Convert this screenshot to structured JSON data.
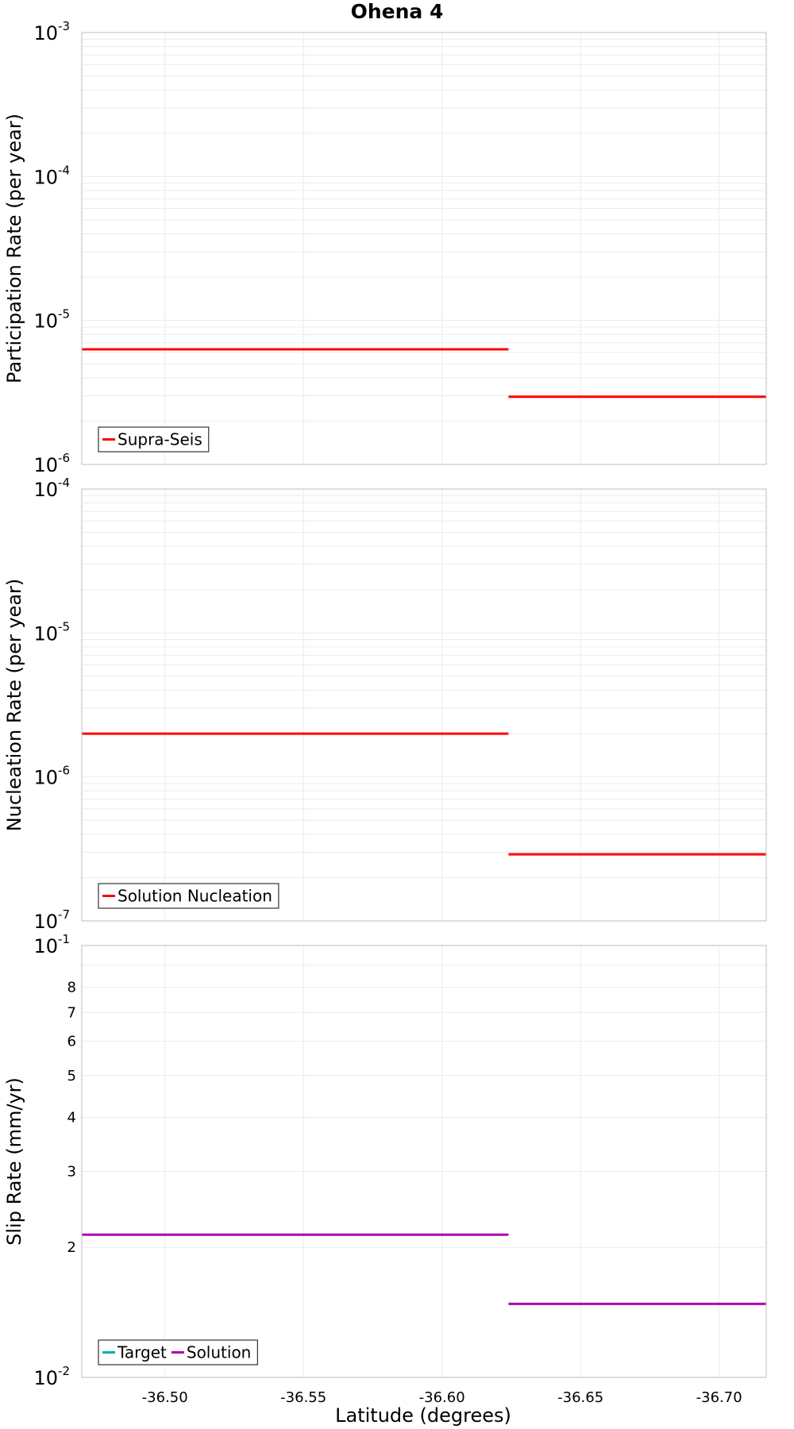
{
  "chart_data": {
    "title": "Ohena 4",
    "xlabel": "Latitude (degrees)",
    "x_ticks": [
      "-36.50",
      "-36.55",
      "-36.60",
      "-36.65",
      "-36.70"
    ],
    "x_tick_values": [
      -36.5,
      -36.55,
      -36.6,
      -36.65,
      -36.7
    ],
    "xlim": [
      -36.47,
      -36.717
    ],
    "x_inverted": true,
    "grid": true,
    "panels": [
      {
        "type": "line",
        "ylabel": "Participation Rate (per year)",
        "yscale": "log",
        "ylim": [
          1e-06,
          0.001
        ],
        "y_decades": [
          {
            "base": "10",
            "exp": "-6"
          },
          {
            "base": "10",
            "exp": "-5"
          },
          {
            "base": "10",
            "exp": "-4"
          },
          {
            "base": "10",
            "exp": "-3"
          }
        ],
        "legend_position": "bottom-left",
        "series": [
          {
            "name": "Supra-Seis",
            "color": "#ff0000",
            "segments": [
              {
                "x": [
                  -36.47,
                  -36.624
                ],
                "y": 6.3e-06
              },
              {
                "x": [
                  -36.624,
                  -36.717
                ],
                "y": 2.95e-06
              }
            ]
          }
        ]
      },
      {
        "type": "line",
        "ylabel": "Nucleation Rate (per year)",
        "yscale": "log",
        "ylim": [
          1e-07,
          0.0001
        ],
        "y_decades": [
          {
            "base": "10",
            "exp": "-7"
          },
          {
            "base": "10",
            "exp": "-6"
          },
          {
            "base": "10",
            "exp": "-5"
          },
          {
            "base": "10",
            "exp": "-4"
          }
        ],
        "legend_position": "bottom-left",
        "series": [
          {
            "name": "Solution Nucleation",
            "color": "#ff0000",
            "segments": [
              {
                "x": [
                  -36.47,
                  -36.624
                ],
                "y": 2e-06
              },
              {
                "x": [
                  -36.624,
                  -36.717
                ],
                "y": 2.9e-07
              }
            ]
          }
        ]
      },
      {
        "type": "line",
        "ylabel": "Slip Rate (mm/yr)",
        "yscale": "log",
        "ylim": [
          0.01,
          0.1
        ],
        "y_decades": [
          {
            "base": "10",
            "exp": "-2"
          },
          {
            "base": "10",
            "exp": "-1"
          }
        ],
        "y_minor_labels": [
          {
            "label": "2",
            "value": 0.02
          },
          {
            "label": "3",
            "value": 0.03
          },
          {
            "label": "4",
            "value": 0.04
          },
          {
            "label": "5",
            "value": 0.05
          },
          {
            "label": "6",
            "value": 0.06
          },
          {
            "label": "7",
            "value": 0.07
          },
          {
            "label": "8",
            "value": 0.08
          }
        ],
        "legend_position": "bottom-left",
        "series": [
          {
            "name": "Target",
            "color": "#00b0b0",
            "segments": []
          },
          {
            "name": "Solution",
            "color": "#b000b0",
            "segments": [
              {
                "x": [
                  -36.47,
                  -36.624
                ],
                "y": 0.0214
              },
              {
                "x": [
                  -36.624,
                  -36.717
                ],
                "y": 0.0148
              }
            ]
          }
        ]
      }
    ]
  }
}
